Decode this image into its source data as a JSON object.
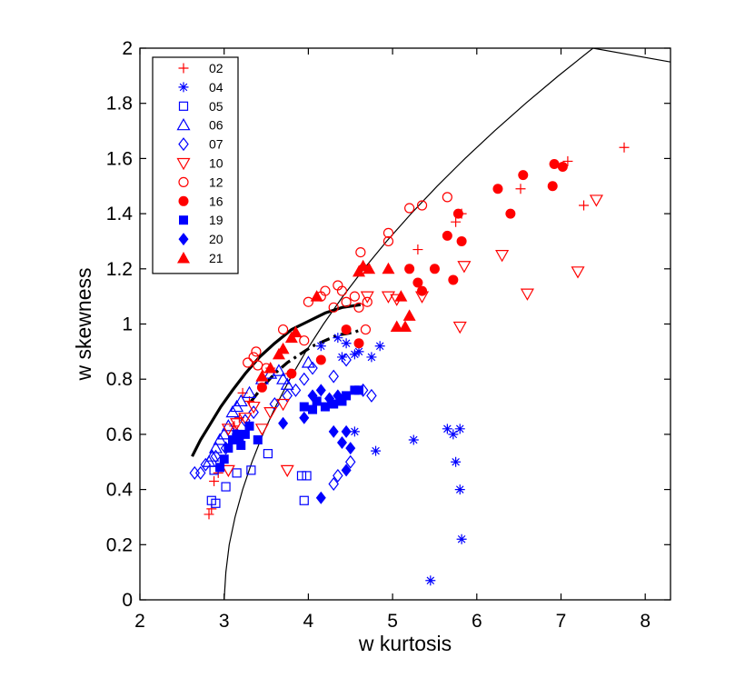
{
  "chart_data": {
    "type": "scatter",
    "title": "",
    "xlabel": "w kurtosis",
    "ylabel": "w skewness",
    "xlim": [
      2,
      8.3
    ],
    "ylim": [
      0,
      2
    ],
    "xticks": [
      2,
      3,
      4,
      5,
      6,
      7,
      8
    ],
    "yticks": [
      0,
      0.2,
      0.4,
      0.6,
      0.8,
      1,
      1.2,
      1.4,
      1.6,
      1.8,
      2
    ],
    "xtick_labels": [
      "2",
      "3",
      "4",
      "5",
      "6",
      "7",
      "8"
    ],
    "ytick_labels": [
      "0",
      "0.2",
      "0.4",
      "0.6",
      "0.8",
      "1",
      "1.2",
      "1.4",
      "1.6",
      "1.8",
      "2"
    ],
    "grid": false,
    "legend_position": "top-left",
    "colors": {
      "red": "#ff0000",
      "blue": "#0000ff",
      "black": "#000000"
    },
    "series": [
      {
        "name": "02",
        "color": "#ff0000",
        "marker": "plus",
        "points": [
          [
            2.82,
            0.31
          ],
          [
            2.85,
            0.33
          ],
          [
            2.88,
            0.43
          ],
          [
            2.93,
            0.46
          ],
          [
            3.12,
            0.63
          ],
          [
            3.18,
            0.66
          ],
          [
            3.22,
            0.75
          ],
          [
            3.3,
            0.72
          ],
          [
            3.55,
            0.84
          ],
          [
            3.78,
            0.82
          ],
          [
            5.3,
            1.27
          ],
          [
            5.75,
            1.37
          ],
          [
            5.82,
            1.4
          ],
          [
            6.52,
            1.49
          ],
          [
            7.08,
            1.59
          ],
          [
            7.27,
            1.43
          ],
          [
            7.75,
            1.64
          ]
        ]
      },
      {
        "name": "04",
        "color": "#0000ff",
        "marker": "asterisk",
        "points": [
          [
            4.15,
            0.92
          ],
          [
            4.35,
            0.95
          ],
          [
            4.45,
            0.93
          ],
          [
            4.55,
            0.89
          ],
          [
            4.6,
            0.9
          ],
          [
            4.75,
            0.88
          ],
          [
            4.85,
            0.92
          ],
          [
            4.4,
            0.88
          ],
          [
            4.55,
            0.61
          ],
          [
            4.8,
            0.54
          ],
          [
            5.25,
            0.58
          ],
          [
            5.45,
            0.07
          ],
          [
            5.65,
            0.62
          ],
          [
            5.72,
            0.6
          ],
          [
            5.8,
            0.62
          ],
          [
            5.75,
            0.5
          ],
          [
            5.8,
            0.4
          ],
          [
            5.82,
            0.22
          ]
        ]
      },
      {
        "name": "05",
        "color": "#0000ff",
        "marker": "square",
        "points": [
          [
            2.85,
            0.36
          ],
          [
            2.9,
            0.35
          ],
          [
            2.88,
            0.47
          ],
          [
            3.02,
            0.41
          ],
          [
            3.15,
            0.46
          ],
          [
            3.32,
            0.47
          ],
          [
            3.52,
            0.53
          ],
          [
            3.95,
            0.36
          ],
          [
            3.92,
            0.45
          ],
          [
            3.98,
            0.45
          ]
        ]
      },
      {
        "name": "06",
        "color": "#0000ff",
        "marker": "triangle-up",
        "points": [
          [
            2.82,
            0.5
          ],
          [
            2.86,
            0.52
          ],
          [
            2.9,
            0.55
          ],
          [
            2.95,
            0.58
          ],
          [
            3.0,
            0.6
          ],
          [
            3.05,
            0.63
          ],
          [
            3.1,
            0.68
          ],
          [
            3.15,
            0.7
          ],
          [
            3.2,
            0.72
          ],
          [
            3.3,
            0.75
          ],
          [
            3.45,
            0.8
          ],
          [
            3.55,
            0.82
          ],
          [
            3.65,
            0.83
          ],
          [
            3.7,
            0.8
          ],
          [
            3.75,
            0.78
          ],
          [
            4.0,
            0.86
          ]
        ]
      },
      {
        "name": "07",
        "color": "#0000ff",
        "marker": "diamond",
        "points": [
          [
            2.65,
            0.46
          ],
          [
            2.72,
            0.46
          ],
          [
            2.78,
            0.49
          ],
          [
            2.9,
            0.52
          ],
          [
            3.02,
            0.55
          ],
          [
            3.15,
            0.6
          ],
          [
            3.25,
            0.65
          ],
          [
            3.35,
            0.68
          ],
          [
            3.6,
            0.71
          ],
          [
            3.75,
            0.74
          ],
          [
            3.85,
            0.76
          ],
          [
            3.95,
            0.8
          ],
          [
            4.05,
            0.84
          ],
          [
            4.3,
            0.81
          ],
          [
            4.45,
            0.87
          ],
          [
            4.65,
            0.76
          ],
          [
            4.75,
            0.74
          ],
          [
            4.3,
            0.42
          ],
          [
            4.35,
            0.45
          ],
          [
            4.5,
            0.5
          ]
        ]
      },
      {
        "name": "10",
        "color": "#ff0000",
        "marker": "triangle-down",
        "points": [
          [
            3.05,
            0.62
          ],
          [
            3.15,
            0.64
          ],
          [
            3.25,
            0.66
          ],
          [
            3.35,
            0.7
          ],
          [
            3.55,
            0.68
          ],
          [
            3.7,
            0.71
          ],
          [
            3.05,
            0.47
          ],
          [
            3.45,
            0.62
          ],
          [
            3.75,
            0.47
          ],
          [
            4.7,
            1.1
          ],
          [
            4.95,
            1.1
          ],
          [
            5.05,
            1.09
          ],
          [
            5.35,
            1.1
          ],
          [
            5.8,
            0.99
          ],
          [
            5.85,
            1.21
          ],
          [
            6.3,
            1.25
          ],
          [
            6.6,
            1.11
          ],
          [
            7.2,
            1.19
          ],
          [
            7.42,
            1.45
          ]
        ]
      },
      {
        "name": "12",
        "color": "#ff0000",
        "marker": "circle",
        "points": [
          [
            3.28,
            0.86
          ],
          [
            3.35,
            0.88
          ],
          [
            3.38,
            0.9
          ],
          [
            3.4,
            0.85
          ],
          [
            3.5,
            0.84
          ],
          [
            3.7,
            0.98
          ],
          [
            3.95,
            0.94
          ],
          [
            4.0,
            1.08
          ],
          [
            4.15,
            1.1
          ],
          [
            4.2,
            1.12
          ],
          [
            4.3,
            1.06
          ],
          [
            4.35,
            1.14
          ],
          [
            4.4,
            1.12
          ],
          [
            4.45,
            1.08
          ],
          [
            4.55,
            1.1
          ],
          [
            4.6,
            1.06
          ],
          [
            4.62,
            1.26
          ],
          [
            4.65,
            1.2
          ],
          [
            4.68,
            0.98
          ],
          [
            4.7,
            1.08
          ],
          [
            4.95,
            1.3
          ],
          [
            4.95,
            1.33
          ],
          [
            5.2,
            1.42
          ],
          [
            5.35,
            1.43
          ],
          [
            5.65,
            1.46
          ]
        ]
      },
      {
        "name": "16",
        "color": "#ff0000",
        "marker": "filled-circle",
        "points": [
          [
            3.45,
            0.77
          ],
          [
            3.8,
            0.82
          ],
          [
            4.15,
            0.87
          ],
          [
            4.45,
            0.98
          ],
          [
            4.6,
            0.93
          ],
          [
            5.2,
            1.2
          ],
          [
            5.3,
            1.15
          ],
          [
            5.35,
            1.12
          ],
          [
            5.5,
            1.2
          ],
          [
            5.65,
            1.32
          ],
          [
            5.72,
            1.16
          ],
          [
            5.82,
            1.3
          ],
          [
            5.78,
            1.4
          ],
          [
            6.25,
            1.49
          ],
          [
            6.4,
            1.4
          ],
          [
            6.55,
            1.54
          ],
          [
            6.9,
            1.5
          ],
          [
            6.92,
            1.58
          ],
          [
            7.02,
            1.57
          ]
        ]
      },
      {
        "name": "19",
        "color": "#0000ff",
        "marker": "filled-square",
        "points": [
          [
            2.95,
            0.48
          ],
          [
            3.0,
            0.51
          ],
          [
            3.05,
            0.55
          ],
          [
            3.1,
            0.58
          ],
          [
            3.15,
            0.6
          ],
          [
            3.18,
            0.58
          ],
          [
            3.2,
            0.56
          ],
          [
            3.25,
            0.6
          ],
          [
            3.3,
            0.63
          ],
          [
            3.4,
            0.58
          ],
          [
            3.95,
            0.7
          ],
          [
            4.05,
            0.69
          ],
          [
            4.1,
            0.72
          ],
          [
            4.2,
            0.7
          ],
          [
            4.3,
            0.71
          ],
          [
            4.4,
            0.72
          ],
          [
            4.45,
            0.74
          ],
          [
            4.55,
            0.76
          ],
          [
            4.6,
            0.76
          ]
        ]
      },
      {
        "name": "20",
        "color": "#0000ff",
        "marker": "filled-diamond",
        "points": [
          [
            3.7,
            0.64
          ],
          [
            3.95,
            0.66
          ],
          [
            4.05,
            0.74
          ],
          [
            4.15,
            0.76
          ],
          [
            4.25,
            0.73
          ],
          [
            4.35,
            0.74
          ],
          [
            4.3,
            0.61
          ],
          [
            4.4,
            0.57
          ],
          [
            4.45,
            0.61
          ],
          [
            4.5,
            0.55
          ],
          [
            4.45,
            0.47
          ],
          [
            4.15,
            0.37
          ]
        ]
      },
      {
        "name": "21",
        "color": "#ff0000",
        "marker": "filled-triangle-up",
        "points": [
          [
            3.45,
            0.81
          ],
          [
            3.55,
            0.84
          ],
          [
            3.65,
            0.89
          ],
          [
            3.7,
            0.91
          ],
          [
            3.8,
            0.95
          ],
          [
            3.85,
            0.97
          ],
          [
            4.1,
            1.1
          ],
          [
            4.6,
            1.19
          ],
          [
            4.65,
            1.21
          ],
          [
            4.72,
            1.2
          ],
          [
            4.95,
            1.2
          ],
          [
            5.05,
            0.99
          ],
          [
            5.1,
            1.1
          ],
          [
            5.15,
            0.99
          ],
          [
            5.2,
            1.03
          ]
        ]
      }
    ],
    "curves": [
      {
        "style": "thin-solid",
        "color": "#000000",
        "points": [
          [
            3.0,
            0.0
          ],
          [
            3.02,
            0.1
          ],
          [
            3.06,
            0.2
          ],
          [
            3.13,
            0.3
          ],
          [
            3.22,
            0.4
          ],
          [
            3.33,
            0.5
          ],
          [
            3.46,
            0.6
          ],
          [
            3.61,
            0.7
          ],
          [
            3.78,
            0.8
          ],
          [
            3.97,
            0.9
          ],
          [
            4.18,
            1.0
          ],
          [
            4.41,
            1.1
          ],
          [
            4.66,
            1.2
          ],
          [
            4.93,
            1.3
          ],
          [
            5.22,
            1.4
          ],
          [
            5.53,
            1.5
          ],
          [
            5.86,
            1.6
          ],
          [
            6.21,
            1.7
          ],
          [
            6.58,
            1.8
          ],
          [
            6.97,
            1.9
          ],
          [
            7.38,
            2.0
          ],
          [
            8.3,
            1.95
          ]
        ]
      },
      {
        "style": "thick-solid",
        "color": "#000000",
        "points": [
          [
            2.62,
            0.52
          ],
          [
            2.72,
            0.58
          ],
          [
            2.84,
            0.64
          ],
          [
            2.96,
            0.7
          ],
          [
            3.1,
            0.76
          ],
          [
            3.25,
            0.82
          ],
          [
            3.42,
            0.88
          ],
          [
            3.6,
            0.93
          ],
          [
            3.8,
            0.98
          ],
          [
            4.0,
            1.01
          ],
          [
            4.2,
            1.04
          ],
          [
            4.4,
            1.06
          ],
          [
            4.62,
            1.07
          ]
        ]
      },
      {
        "style": "thick-dashdot",
        "color": "#000000",
        "points": [
          [
            3.32,
            0.72
          ],
          [
            3.45,
            0.77
          ],
          [
            3.6,
            0.82
          ],
          [
            3.75,
            0.86
          ],
          [
            3.9,
            0.89
          ],
          [
            4.05,
            0.92
          ],
          [
            4.2,
            0.94
          ],
          [
            4.35,
            0.96
          ],
          [
            4.55,
            0.97
          ],
          [
            4.62,
            0.98
          ]
        ]
      }
    ]
  }
}
